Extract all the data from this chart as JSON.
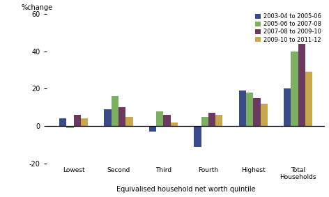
{
  "categories": [
    "Lowest",
    "Second",
    "Third",
    "Fourth",
    "Highest",
    "Total\nHouseholds"
  ],
  "series": [
    {
      "label": "2003-04 to 2005-06",
      "color": "#3B4A8A",
      "values": [
        4,
        9,
        -3,
        -11,
        19,
        20
      ]
    },
    {
      "label": "2005-06 to 2007-08",
      "color": "#7DB060",
      "values": [
        -1,
        16,
        8,
        5,
        18,
        40
      ]
    },
    {
      "label": "2007-08 to 2009-10",
      "color": "#6B3A5E",
      "values": [
        6,
        10,
        6,
        7,
        15,
        44
      ]
    },
    {
      "label": "2009-10 to 2011-12",
      "color": "#C8A84B",
      "values": [
        4,
        5,
        2,
        6,
        12,
        29
      ]
    }
  ],
  "pct_change_label": "%change",
  "xlabel": "Equivalised household net worth quintile",
  "ylim": [
    -20,
    60
  ],
  "yticks": [
    -20,
    0,
    20,
    40,
    60
  ],
  "background_color": "#ffffff"
}
